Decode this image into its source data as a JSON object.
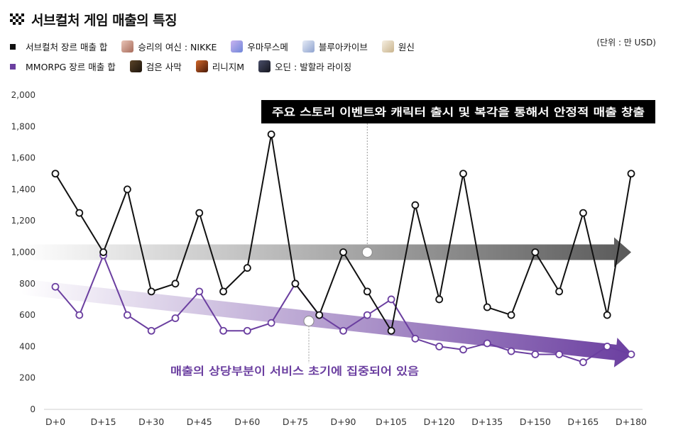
{
  "title": "서브컬처 게임 매출의 특징",
  "unit": "(단위 : 만 USD)",
  "legend": {
    "row1": [
      {
        "label": "서브컬처 장르 매출 합",
        "kind": "series",
        "color": "#111111"
      },
      {
        "label": "승리의 여신 : NIKKE",
        "kind": "game",
        "color": "#c98a7a"
      },
      {
        "label": "우마무스메",
        "kind": "game",
        "color": "#9a9bd8"
      },
      {
        "label": "블루아카이브",
        "kind": "game",
        "color": "#aab7d6"
      },
      {
        "label": "원신",
        "kind": "game",
        "color": "#d9cbb0"
      }
    ],
    "row2": [
      {
        "label": "MMORPG 장르 매출 합",
        "kind": "series",
        "color": "#6b3fa0"
      },
      {
        "label": "검은 사막",
        "kind": "game",
        "color": "#3a2a1c"
      },
      {
        "label": "리니지M",
        "kind": "game",
        "color": "#8a3a14"
      },
      {
        "label": "오딘 : 발할라 라이징",
        "kind": "game",
        "color": "#2a2c3a"
      }
    ]
  },
  "annotations": {
    "top": "주요 스토리 이벤트와 캐릭터 출시 및 복각을 통해서 안정적 매출 창출",
    "bottom": "매출의 상당부분이 서비스 초기에 집중되어 있음"
  },
  "colors": {
    "subculture": "#111111",
    "mmorpg": "#6b3fa0",
    "arrow_top": "#5a5a5a",
    "arrow_bottom": "#6b3fa0",
    "annotation_bg": "#000000",
    "annotation_text_bottom": "#6b3fa0"
  },
  "chart_data": {
    "type": "line",
    "x": [
      0,
      7.5,
      15,
      22.5,
      30,
      37.5,
      45,
      52.5,
      60,
      67.5,
      75,
      82.5,
      90,
      97.5,
      105,
      112.5,
      120,
      127.5,
      135,
      142.5,
      150,
      157.5,
      165,
      172.5,
      180
    ],
    "x_ticks": [
      "D+0",
      "D+15",
      "D+30",
      "D+45",
      "D+60",
      "D+75",
      "D+90",
      "D+105",
      "D+120",
      "D+135",
      "D+150",
      "D+165",
      "D+180"
    ],
    "x_tick_values": [
      0,
      15,
      30,
      45,
      60,
      75,
      90,
      105,
      120,
      135,
      150,
      165,
      180
    ],
    "y_ticks": [
      "0",
      "200",
      "400",
      "600",
      "800",
      "1,000",
      "1,200",
      "1,400",
      "1,600",
      "1,800",
      "2,000"
    ],
    "y_tick_values": [
      0,
      200,
      400,
      600,
      800,
      1000,
      1200,
      1400,
      1600,
      1800,
      2000
    ],
    "xlim": [
      0,
      180
    ],
    "ylim": [
      0,
      2000
    ],
    "series": [
      {
        "name": "서브컬처 장르 매출 합",
        "color": "#111111",
        "values": [
          1500,
          1250,
          1000,
          1400,
          750,
          800,
          1250,
          750,
          900,
          1750,
          800,
          600,
          1000,
          750,
          500,
          1300,
          700,
          1500,
          650,
          600,
          1000,
          750,
          1250,
          600,
          1500
        ]
      },
      {
        "name": "MMORPG 장르 매출 합",
        "color": "#6b3fa0",
        "values": [
          780,
          600,
          980,
          600,
          500,
          580,
          750,
          500,
          500,
          550,
          800,
          600,
          500,
          600,
          700,
          450,
          400,
          380,
          420,
          370,
          350,
          350,
          300,
          400,
          350
        ]
      }
    ],
    "trend_top": {
      "x": [
        0,
        180
      ],
      "y": [
        1000,
        1000
      ]
    },
    "trend_bottom": {
      "x": [
        0,
        180
      ],
      "y": [
        780,
        350
      ]
    },
    "grid": false
  }
}
